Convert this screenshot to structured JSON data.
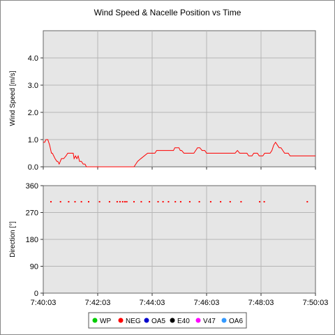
{
  "chart_data": [
    {
      "type": "line",
      "title": "Wind Speed & Nacelle Position vs Time",
      "ylabel": "Wind Speed [m/s]",
      "xlabel": "",
      "ylim": [
        0,
        5
      ],
      "yticks": [
        "0.0",
        "1.0",
        "2.0",
        "3.0",
        "4.0"
      ],
      "ytick_values": [
        0,
        1,
        2,
        3,
        4
      ],
      "grid": true,
      "series": [
        {
          "color": "#ff0000",
          "x": [
            0,
            3,
            6,
            10,
            14,
            18,
            20,
            23,
            26,
            30,
            32,
            35,
            40,
            45,
            50,
            54,
            58,
            61,
            64,
            66,
            68,
            71,
            74,
            77,
            80,
            84,
            88,
            92,
            95,
            100,
            120,
            150,
            180,
            197,
            200,
            204,
            208,
            215,
            230,
            233,
            236,
            238,
            240,
            243,
            246,
            250,
            255,
            260,
            270,
            280,
            287,
            290,
            293,
            296,
            299,
            302,
            305,
            310,
            315,
            320,
            324,
            328,
            332,
            336,
            340,
            345,
            350,
            356,
            360,
            363,
            366,
            370,
            375,
            380,
            385,
            390,
            396,
            402,
            406,
            410,
            414,
            418,
            423,
            428,
            433,
            437,
            441,
            445,
            449,
            453,
            457,
            460,
            464,
            468,
            472,
            476,
            480,
            484,
            488,
            492,
            496,
            500,
            504,
            508,
            512,
            516,
            520,
            524,
            528,
            532,
            536,
            540,
            544,
            548,
            552,
            556,
            560,
            564,
            568,
            572,
            576,
            580,
            584,
            588,
            592,
            596,
            600
          ],
          "y": [
            0.9,
            0.9,
            1.0,
            1.0,
            0.8,
            0.5,
            0.5,
            0.4,
            0.3,
            0.2,
            0.2,
            0.1,
            0.3,
            0.3,
            0.4,
            0.5,
            0.5,
            0.5,
            0.5,
            0.5,
            0.3,
            0.4,
            0.3,
            0.4,
            0.2,
            0.2,
            0.1,
            0.1,
            0.0,
            0.0,
            0.0,
            0.0,
            0.0,
            0.0,
            0.0,
            0.1,
            0.2,
            0.3,
            0.5,
            0.5,
            0.5,
            0.5,
            0.5,
            0.5,
            0.5,
            0.6,
            0.6,
            0.6,
            0.6,
            0.6,
            0.6,
            0.7,
            0.7,
            0.7,
            0.7,
            0.6,
            0.6,
            0.5,
            0.5,
            0.5,
            0.5,
            0.5,
            0.5,
            0.6,
            0.7,
            0.7,
            0.6,
            0.6,
            0.5,
            0.5,
            0.5,
            0.5,
            0.5,
            0.5,
            0.5,
            0.5,
            0.5,
            0.5,
            0.5,
            0.5,
            0.5,
            0.5,
            0.5,
            0.6,
            0.5,
            0.5,
            0.5,
            0.5,
            0.5,
            0.4,
            0.4,
            0.4,
            0.5,
            0.5,
            0.5,
            0.4,
            0.4,
            0.4,
            0.5,
            0.5,
            0.5,
            0.5,
            0.6,
            0.8,
            0.9,
            0.8,
            0.7,
            0.7,
            0.6,
            0.5,
            0.5,
            0.5,
            0.4,
            0.4,
            0.4,
            0.4,
            0.4,
            0.4,
            0.4,
            0.4,
            0.4,
            0.4,
            0.4,
            0.4,
            0.4,
            0.4,
            0.4
          ]
        }
      ]
    },
    {
      "type": "scatter",
      "ylabel": "Direction [°]",
      "xlabel": "",
      "ylim": [
        0,
        360
      ],
      "yticks": [
        "0",
        "90",
        "180",
        "270",
        "360"
      ],
      "ytick_values": [
        0,
        90,
        180,
        270,
        360
      ],
      "xlim": [
        0,
        600
      ],
      "xticks": [
        "7:40:03",
        "7:42:03",
        "7:44:03",
        "7:46:03",
        "7:48:03",
        "7:50:03"
      ],
      "xtick_values": [
        0,
        120,
        240,
        360,
        480,
        600
      ],
      "grid": true,
      "legend_position": "bottom",
      "legend": [
        {
          "label": "WP",
          "color": "#00cc00"
        },
        {
          "label": "NEG",
          "color": "#ff0000"
        },
        {
          "label": "OA5",
          "color": "#0000cc"
        },
        {
          "label": "E40",
          "color": "#000000"
        },
        {
          "label": "V47",
          "color": "#ff00ff"
        },
        {
          "label": "OA6",
          "color": "#3399ff"
        }
      ],
      "series": [
        {
          "name": "NEG",
          "color": "#ff0000",
          "x": [
            17,
            38,
            56,
            70,
            84,
            100,
            124,
            146,
            163,
            169,
            175,
            180,
            184,
            200,
            216,
            234,
            253,
            264,
            276,
            291,
            303,
            323,
            344,
            369,
            391,
            412,
            436,
            477,
            487,
            582
          ],
          "y": [
            306,
            306,
            306,
            306,
            306,
            306,
            306,
            306,
            306,
            306,
            306,
            306,
            306,
            306,
            306,
            306,
            306,
            306,
            306,
            306,
            306,
            306,
            306,
            306,
            306,
            306,
            306,
            306,
            306,
            306
          ]
        }
      ]
    }
  ]
}
